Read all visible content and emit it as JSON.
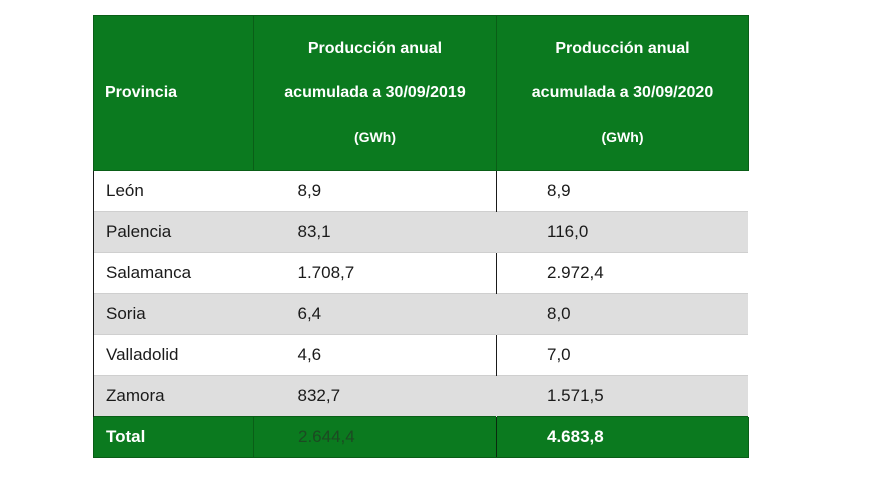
{
  "table": {
    "headers": {
      "province": "Provincia",
      "year2019": [
        "Producción anual",
        "acumulada a 30/09/2019",
        "(GWh)"
      ],
      "year2020": [
        "Producción anual",
        "acumulada a 30/09/2020",
        "(GWh)"
      ]
    },
    "rows": [
      {
        "province": "León",
        "v2019": "8,9",
        "v2020": "8,9"
      },
      {
        "province": "Palencia",
        "v2019": "83,1",
        "v2020": "116,0"
      },
      {
        "province": "Salamanca",
        "v2019": "1.708,7",
        "v2020": "2.972,4"
      },
      {
        "province": "Soria",
        "v2019": "6,4",
        "v2020": "8,0"
      },
      {
        "province": "Valladolid",
        "v2019": "4,6",
        "v2020": "7,0"
      },
      {
        "province": "Zamora",
        "v2019": "832,7",
        "v2020": "1.571,5"
      }
    ],
    "total": {
      "label": "Total",
      "v2019": "2.644,4",
      "v2020": "4.683,8"
    }
  },
  "colors": {
    "header_green": "#0b7a1f",
    "row_shade": "#dedede"
  }
}
